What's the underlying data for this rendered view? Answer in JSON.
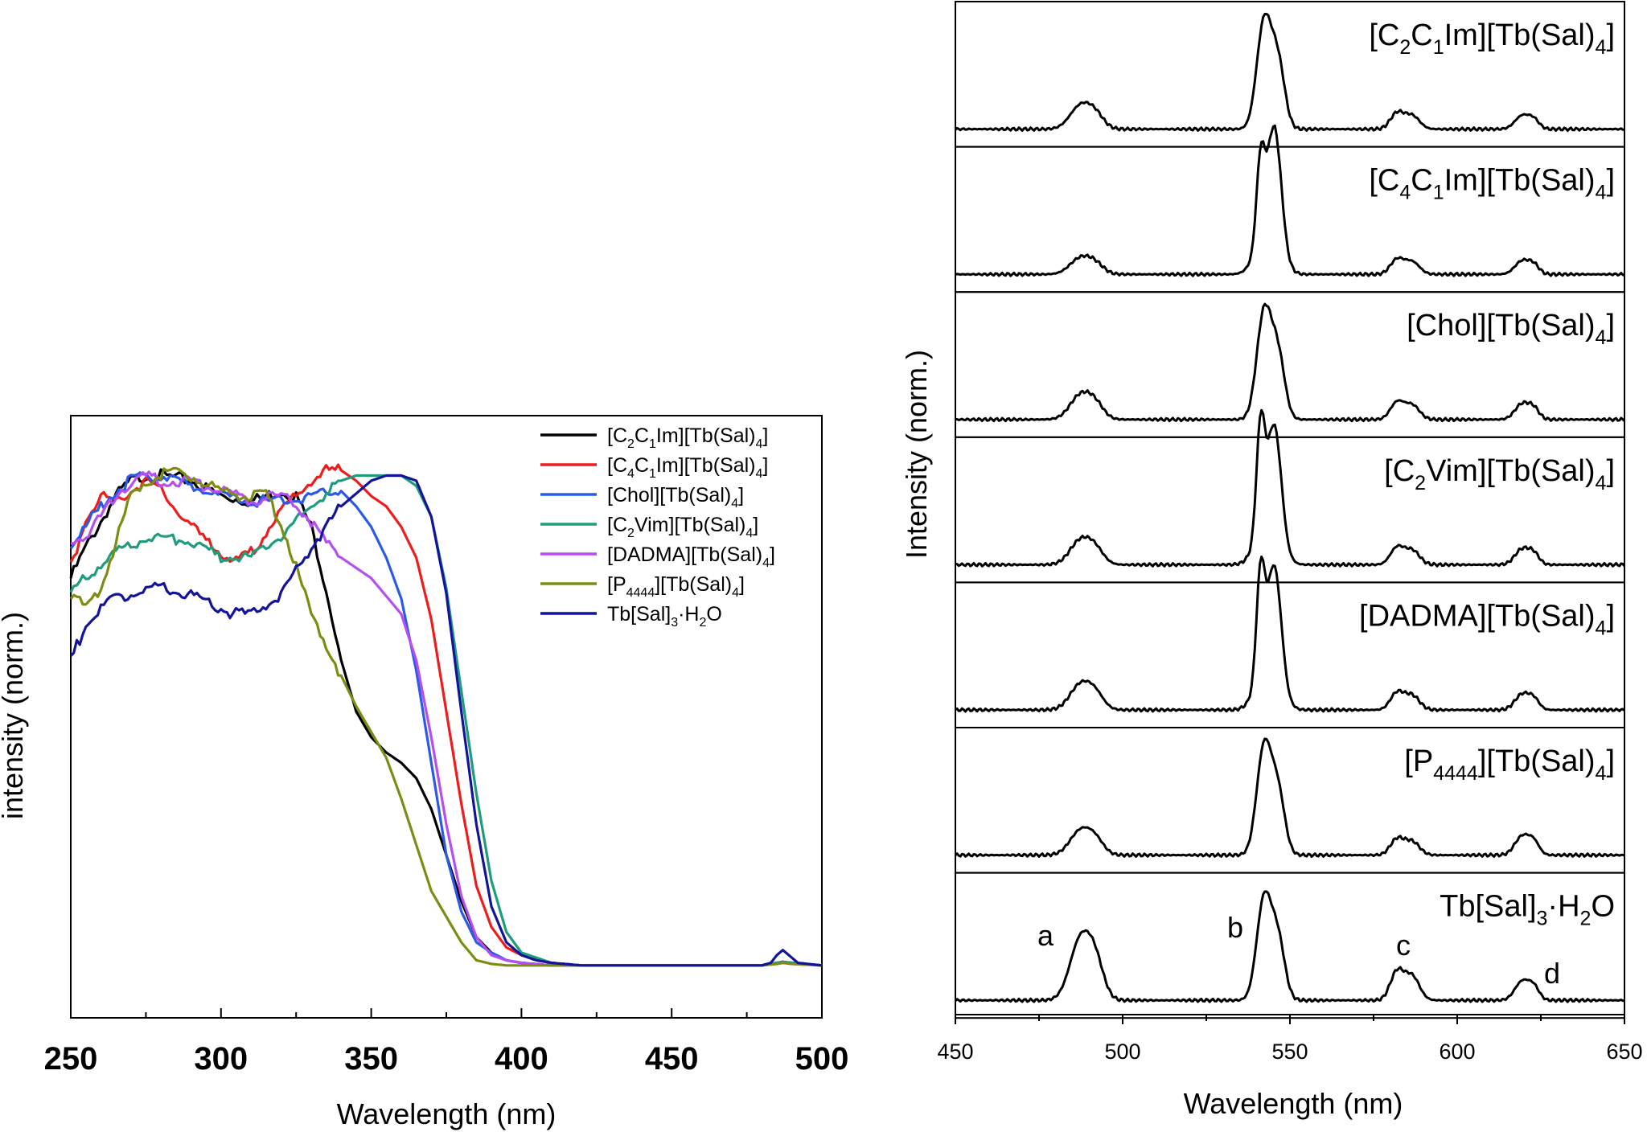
{
  "chart_data": [
    {
      "type": "line",
      "panel": "left",
      "title": "",
      "xlabel": "Wavelength (nm)",
      "ylabel": "intensity (norm.)",
      "xlim": [
        250,
        500
      ],
      "ylim": [
        0,
        1.1
      ],
      "x_ticks": [
        "250",
        "300",
        "350",
        "400",
        "450",
        "500"
      ],
      "grid": false,
      "legend_position": "top-right",
      "series": [
        {
          "name": "[C2C1Im][Tb(Sal)4]",
          "legend": {
            "base": "[C",
            "parts": [
              [
                "2",
                "sub"
              ],
              [
                "C",
                ""
              ],
              [
                "1",
                "sub"
              ],
              [
                "Im][Tb(Sal)",
                ""
              ],
              [
                "4",
                "sub"
              ],
              [
                "]",
                ""
              ]
            ]
          },
          "color": "#000000",
          "x": [
            250,
            255,
            260,
            265,
            270,
            275,
            280,
            290,
            300,
            310,
            320,
            325,
            330,
            335,
            340,
            345,
            350,
            355,
            360,
            365,
            370,
            375,
            380,
            385,
            390,
            395,
            400,
            410,
            420,
            450,
            480,
            485,
            487,
            490,
            500
          ],
          "y": [
            0.76,
            0.82,
            0.87,
            0.92,
            0.95,
            0.96,
            0.96,
            0.95,
            0.92,
            0.91,
            0.93,
            0.92,
            0.86,
            0.74,
            0.6,
            0.5,
            0.45,
            0.42,
            0.4,
            0.37,
            0.31,
            0.22,
            0.13,
            0.06,
            0.03,
            0.015,
            0.01,
            0.005,
            0.005,
            0.005,
            0.005,
            0.01,
            0.012,
            0.01,
            0.005
          ]
        },
        {
          "name": "[C4C1Im][Tb(Sal)4]",
          "legend": {
            "base": "[C",
            "parts": [
              [
                "4",
                "sub"
              ],
              [
                "C",
                ""
              ],
              [
                "1",
                "sub"
              ],
              [
                "Im][Tb(Sal)",
                ""
              ],
              [
                "4",
                "sub"
              ],
              [
                "]",
                ""
              ]
            ]
          },
          "color": "#ee1c1c",
          "x": [
            250,
            255,
            260,
            265,
            270,
            275,
            280,
            290,
            300,
            305,
            310,
            320,
            330,
            335,
            340,
            345,
            350,
            355,
            360,
            365,
            370,
            375,
            380,
            385,
            390,
            395,
            400,
            405,
            410,
            420,
            450,
            480,
            485,
            487,
            490,
            500
          ],
          "y": [
            0.78,
            0.88,
            0.92,
            0.91,
            0.93,
            0.95,
            0.93,
            0.86,
            0.81,
            0.79,
            0.81,
            0.89,
            0.95,
            0.97,
            0.97,
            0.95,
            0.92,
            0.9,
            0.86,
            0.8,
            0.68,
            0.5,
            0.32,
            0.16,
            0.08,
            0.04,
            0.025,
            0.015,
            0.01,
            0.005,
            0.005,
            0.005,
            0.01,
            0.012,
            0.01,
            0.005
          ]
        },
        {
          "name": "[Chol][Tb(Sal)4]",
          "legend": {
            "base": "[Chol][Tb(Sal)",
            "parts": [
              [
                "4",
                "sub"
              ],
              [
                "]",
                ""
              ]
            ]
          },
          "color": "#2b59e8",
          "x": [
            250,
            255,
            260,
            265,
            270,
            275,
            280,
            290,
            300,
            310,
            320,
            330,
            335,
            340,
            345,
            350,
            355,
            360,
            365,
            370,
            375,
            380,
            385,
            390,
            395,
            400,
            410,
            420,
            450,
            480,
            485,
            487,
            490,
            500
          ],
          "y": [
            0.82,
            0.86,
            0.9,
            0.93,
            0.95,
            0.96,
            0.96,
            0.94,
            0.92,
            0.91,
            0.91,
            0.92,
            0.93,
            0.93,
            0.9,
            0.86,
            0.8,
            0.72,
            0.58,
            0.4,
            0.22,
            0.11,
            0.05,
            0.03,
            0.015,
            0.01,
            0.005,
            0.005,
            0.005,
            0.005,
            0.01,
            0.012,
            0.01,
            0.005
          ]
        },
        {
          "name": "[C2Vim][Tb(Sal)4]",
          "legend": {
            "base": "[C",
            "parts": [
              [
                "2",
                "sub"
              ],
              [
                "Vim][Tb(Sal)",
                ""
              ],
              [
                "4",
                "sub"
              ],
              [
                "]",
                ""
              ]
            ]
          },
          "color": "#1f9b7e",
          "x": [
            250,
            255,
            260,
            265,
            270,
            275,
            280,
            290,
            300,
            310,
            320,
            330,
            340,
            345,
            350,
            355,
            360,
            365,
            370,
            375,
            380,
            385,
            390,
            395,
            400,
            405,
            410,
            420,
            450,
            480,
            485,
            487,
            490,
            500
          ],
          "y": [
            0.73,
            0.76,
            0.79,
            0.81,
            0.82,
            0.84,
            0.84,
            0.83,
            0.8,
            0.8,
            0.84,
            0.9,
            0.95,
            0.96,
            0.96,
            0.96,
            0.96,
            0.94,
            0.88,
            0.74,
            0.54,
            0.34,
            0.17,
            0.07,
            0.03,
            0.02,
            0.01,
            0.005,
            0.005,
            0.005,
            0.01,
            0.012,
            0.01,
            0.005
          ]
        },
        {
          "name": "[DADMA][Tb(Sal)4]",
          "legend": {
            "base": "[DADMA][Tb(Sal)",
            "parts": [
              [
                "4",
                "sub"
              ],
              [
                "]",
                ""
              ]
            ]
          },
          "color": "#b64ef0",
          "x": [
            250,
            255,
            260,
            265,
            270,
            275,
            280,
            290,
            300,
            310,
            320,
            325,
            330,
            335,
            340,
            350,
            360,
            365,
            370,
            375,
            380,
            385,
            390,
            395,
            400,
            410,
            420,
            450,
            480,
            485,
            487,
            490,
            500
          ],
          "y": [
            0.83,
            0.84,
            0.88,
            0.92,
            0.95,
            0.96,
            0.95,
            0.95,
            0.93,
            0.91,
            0.92,
            0.9,
            0.87,
            0.83,
            0.8,
            0.76,
            0.69,
            0.6,
            0.45,
            0.28,
            0.14,
            0.06,
            0.025,
            0.015,
            0.01,
            0.005,
            0.005,
            0.005,
            0.005,
            0.008,
            0.01,
            0.008,
            0.005
          ]
        },
        {
          "name": "[P4444][Tb(Sal)4]",
          "legend": {
            "base": "[P",
            "parts": [
              [
                "4444",
                "sub"
              ],
              [
                "][Tb(Sal)",
                ""
              ],
              [
                "4",
                "sub"
              ],
              [
                "]",
                ""
              ]
            ]
          },
          "color": "#7e8c12",
          "x": [
            250,
            255,
            260,
            265,
            270,
            275,
            280,
            285,
            290,
            300,
            310,
            315,
            320,
            325,
            330,
            335,
            340,
            345,
            350,
            355,
            360,
            365,
            370,
            375,
            380,
            385,
            390,
            395,
            400,
            410,
            420,
            450,
            480,
            485,
            487,
            490,
            500
          ],
          "y": [
            0.73,
            0.7,
            0.74,
            0.83,
            0.92,
            0.95,
            0.96,
            0.97,
            0.96,
            0.93,
            0.92,
            0.92,
            0.87,
            0.78,
            0.69,
            0.63,
            0.57,
            0.51,
            0.46,
            0.41,
            0.33,
            0.24,
            0.15,
            0.1,
            0.05,
            0.015,
            0.008,
            0.005,
            0.005,
            0.005,
            0.005,
            0.005,
            0.005,
            0.008,
            0.01,
            0.008,
            0.005
          ]
        },
        {
          "name": "Tb[Sal]3·H2O",
          "legend": {
            "base": "Tb[Sal]",
            "parts": [
              [
                "3",
                "sub"
              ],
              [
                "·H",
                ""
              ],
              [
                "2",
                "sub"
              ],
              [
                "O",
                ""
              ]
            ]
          },
          "color": "#14149b",
          "x": [
            250,
            255,
            260,
            265,
            270,
            275,
            280,
            290,
            300,
            305,
            310,
            320,
            330,
            340,
            350,
            355,
            360,
            365,
            370,
            375,
            380,
            385,
            390,
            395,
            400,
            405,
            410,
            420,
            450,
            480,
            483,
            485,
            487,
            489,
            492,
            500
          ],
          "y": [
            0.6,
            0.67,
            0.7,
            0.72,
            0.73,
            0.74,
            0.74,
            0.73,
            0.7,
            0.69,
            0.69,
            0.73,
            0.82,
            0.9,
            0.95,
            0.96,
            0.96,
            0.95,
            0.88,
            0.73,
            0.5,
            0.28,
            0.12,
            0.05,
            0.025,
            0.015,
            0.01,
            0.005,
            0.005,
            0.005,
            0.01,
            0.025,
            0.035,
            0.025,
            0.01,
            0.005
          ]
        }
      ]
    },
    {
      "type": "line",
      "panel": "right",
      "title": "",
      "xlabel": "Wavelength (nm)",
      "ylabel": "Intensity (norm.)",
      "xlim": [
        450,
        650
      ],
      "x_ticks": [
        "450",
        "500",
        "550",
        "600",
        "650"
      ],
      "grid": false,
      "layout": "stacked panels",
      "peaks_x": [
        488,
        542,
        582,
        620
      ],
      "panels": [
        {
          "name": "[C2C1Im][Tb(Sal)4]",
          "label": {
            "base": "[C",
            "parts": [
              [
                "2",
                "sub"
              ],
              [
                "C",
                ""
              ],
              [
                "1",
                "sub"
              ],
              [
                "Im][Tb(Sal)",
                ""
              ],
              [
                "4",
                "sub"
              ],
              [
                "]",
                ""
              ]
            ]
          },
          "peak_a": 0.23,
          "peak_b": 0.95,
          "peak_b2": 0.93,
          "peak_c": 0.14,
          "peak_d": 0.12,
          "twin_b": false
        },
        {
          "name": "[C4C1Im][Tb(Sal)4]",
          "label": {
            "base": "[C",
            "parts": [
              [
                "4",
                "sub"
              ],
              [
                "C",
                ""
              ],
              [
                "1",
                "sub"
              ],
              [
                "Im][Tb(Sal)",
                ""
              ],
              [
                "4",
                "sub"
              ],
              [
                "]",
                ""
              ]
            ]
          },
          "peak_a": 0.16,
          "peak_b": 0.7,
          "peak_b2": 0.93,
          "peak_c": 0.13,
          "peak_d": 0.12,
          "twin_b": true
        },
        {
          "name": "[Chol][Tb(Sal)4]",
          "label": {
            "base": "[Chol][Tb(Sal)",
            "parts": [
              [
                "4",
                "sub"
              ],
              [
                "]",
                ""
              ]
            ]
          },
          "peak_a": 0.24,
          "peak_b": 0.95,
          "peak_b2": 0.9,
          "peak_c": 0.15,
          "peak_d": 0.14,
          "twin_b": false
        },
        {
          "name": "[C2Vim][Tb(Sal)4]",
          "label": {
            "base": "[C",
            "parts": [
              [
                "2",
                "sub"
              ],
              [
                "Vim][Tb(Sal)",
                ""
              ],
              [
                "4",
                "sub"
              ],
              [
                "]",
                ""
              ]
            ]
          },
          "peak_a": 0.24,
          "peak_b": 0.92,
          "peak_b2": 0.86,
          "peak_c": 0.15,
          "peak_d": 0.14,
          "twin_b": true
        },
        {
          "name": "[DADMA][Tb(Sal)4]",
          "label": {
            "base": "[DADMA][Tb(Sal)",
            "parts": [
              [
                "4",
                "sub"
              ],
              [
                "]",
                ""
              ]
            ]
          },
          "peak_a": 0.25,
          "peak_b": 0.9,
          "peak_b2": 0.9,
          "peak_c": 0.15,
          "peak_d": 0.14,
          "twin_b": true
        },
        {
          "name": "[P4444][Tb(Sal)4]",
          "label": {
            "base": "[P",
            "parts": [
              [
                "4444",
                "sub"
              ],
              [
                "][Tb(Sal)",
                ""
              ],
              [
                "4",
                "sub"
              ],
              [
                "]",
                ""
              ]
            ]
          },
          "peak_a": 0.24,
          "peak_b": 0.96,
          "peak_b2": 0.88,
          "peak_c": 0.14,
          "peak_d": 0.17,
          "twin_b": false
        },
        {
          "name": "Tb[Sal]3·H2O",
          "label": {
            "base": "Tb[Sal]",
            "parts": [
              [
                "3",
                "sub"
              ],
              [
                "·H",
                ""
              ],
              [
                "2",
                "sub"
              ],
              [
                "O",
                ""
              ]
            ]
          },
          "peak_a": 0.6,
          "peak_b": 0.9,
          "peak_b2": 0.85,
          "peak_c": 0.25,
          "peak_d": 0.17,
          "twin_b": false
        }
      ],
      "annotations": [
        "a",
        "b",
        "c",
        "d"
      ]
    }
  ]
}
